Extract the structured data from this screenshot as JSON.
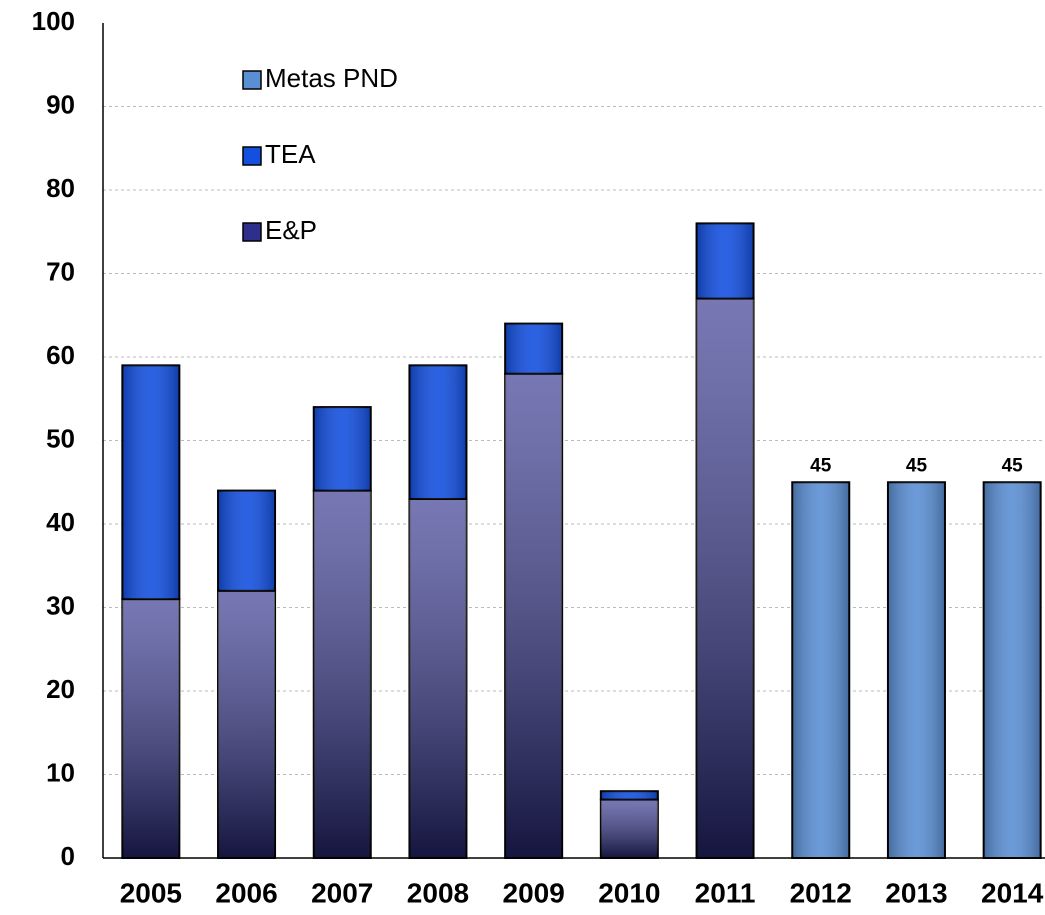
{
  "chart_data": {
    "type": "stacked_bar",
    "categories": [
      "2005",
      "2006",
      "2007",
      "2008",
      "2009",
      "2010",
      "2011",
      "2012",
      "2013",
      "2014"
    ],
    "series": [
      {
        "name": "E&P",
        "color": "#2e2e8c",
        "values": [
          31,
          32,
          44,
          43,
          58,
          7,
          67,
          null,
          null,
          null
        ]
      },
      {
        "name": "TEA",
        "color": "#1450e0",
        "values": [
          28,
          12,
          10,
          16,
          6,
          1,
          9,
          null,
          null,
          null
        ]
      },
      {
        "name": "Metas PND",
        "color": "#5b8fd4",
        "values": [
          null,
          null,
          null,
          null,
          null,
          null,
          null,
          45,
          45,
          45
        ],
        "show_values": true
      }
    ],
    "ylim": [
      0,
      100
    ],
    "yticks": [
      0,
      10,
      20,
      30,
      40,
      50,
      60,
      70,
      80,
      90,
      100
    ],
    "grid": true,
    "legend": "top-left"
  }
}
